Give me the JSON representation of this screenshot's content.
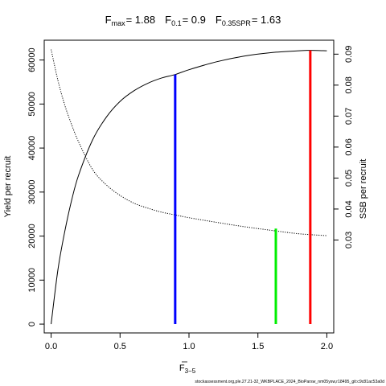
{
  "chart_data": {
    "type": "line",
    "title": {
      "fmax_label": "max",
      "fmax_value": "= 1.88",
      "f01_label": "0.1",
      "f01_value": "= 0.9",
      "fspr_label": "0.35SPR",
      "fspr_value": "= 1.63"
    },
    "xlabel": {
      "main": "F",
      "sub": "3−5"
    },
    "ylabel_left": "Yield per recruit",
    "ylabel_right": "SSB per recruit",
    "footnote": "stockassessment.org,ple.27.21-32_WKBPLACE_2024_BioParsw_nm05ysw,r18495_git:c9c81ac53a0d",
    "xlim": [
      -0.05,
      2.05
    ],
    "ylim_left": [
      -2000,
      64500
    ],
    "ylim_right": [
      0.0,
      0.0945
    ],
    "x_ticks": [
      0,
      0.5,
      1.0,
      1.5,
      2.0
    ],
    "x_tick_labels": [
      "0.0",
      "0.5",
      "1.0",
      "1.5",
      "2.0"
    ],
    "y_left_ticks": [
      0,
      10000,
      20000,
      30000,
      40000,
      50000,
      60000
    ],
    "y_left_tick_labels": [
      "0",
      "10000",
      "20000",
      "30000",
      "40000",
      "50000",
      "60000"
    ],
    "y_right_ticks": [
      0.03,
      0.04,
      0.05,
      0.06,
      0.07,
      0.08,
      0.09
    ],
    "y_right_tick_labels": [
      "0.03",
      "0.04",
      "0.05",
      "0.06",
      "0.07",
      "0.08",
      "0.09"
    ],
    "series": [
      {
        "axis": "left",
        "style": "solid",
        "x": [
          0,
          0.05,
          0.1,
          0.15,
          0.2,
          0.3,
          0.4,
          0.5,
          0.6,
          0.7,
          0.8,
          0.9,
          1.0,
          1.2,
          1.4,
          1.6,
          1.8,
          1.88,
          2.0
        ],
        "y": [
          0,
          12500,
          21200,
          28300,
          33900,
          41800,
          47000,
          50600,
          53000,
          54700,
          55900,
          56700,
          57800,
          59600,
          60900,
          61700,
          62100,
          62200,
          62100
        ]
      },
      {
        "axis": "right",
        "style": "dotted",
        "x": [
          0,
          0.05,
          0.1,
          0.15,
          0.2,
          0.3,
          0.4,
          0.5,
          0.6,
          0.7,
          0.8,
          0.9,
          1.0,
          1.2,
          1.4,
          1.6,
          1.8,
          2.0
        ],
        "y": [
          0.0915,
          0.0814,
          0.0734,
          0.0671,
          0.0616,
          0.0528,
          0.0478,
          0.0444,
          0.0419,
          0.0403,
          0.039,
          0.0381,
          0.0372,
          0.0357,
          0.0343,
          0.0331,
          0.032,
          0.0314
        ]
      }
    ],
    "reference_lines": [
      {
        "id": "f01",
        "x": 0.9,
        "y_top": 56700,
        "color": "#0000ff"
      },
      {
        "id": "fspr",
        "x": 1.63,
        "y_top": 21700,
        "color": "#00ee00"
      },
      {
        "id": "fmax",
        "x": 1.88,
        "y_top": 62200,
        "color": "#ff0000"
      }
    ],
    "colors": {
      "axis": "#000000",
      "curve": "#000000"
    }
  }
}
